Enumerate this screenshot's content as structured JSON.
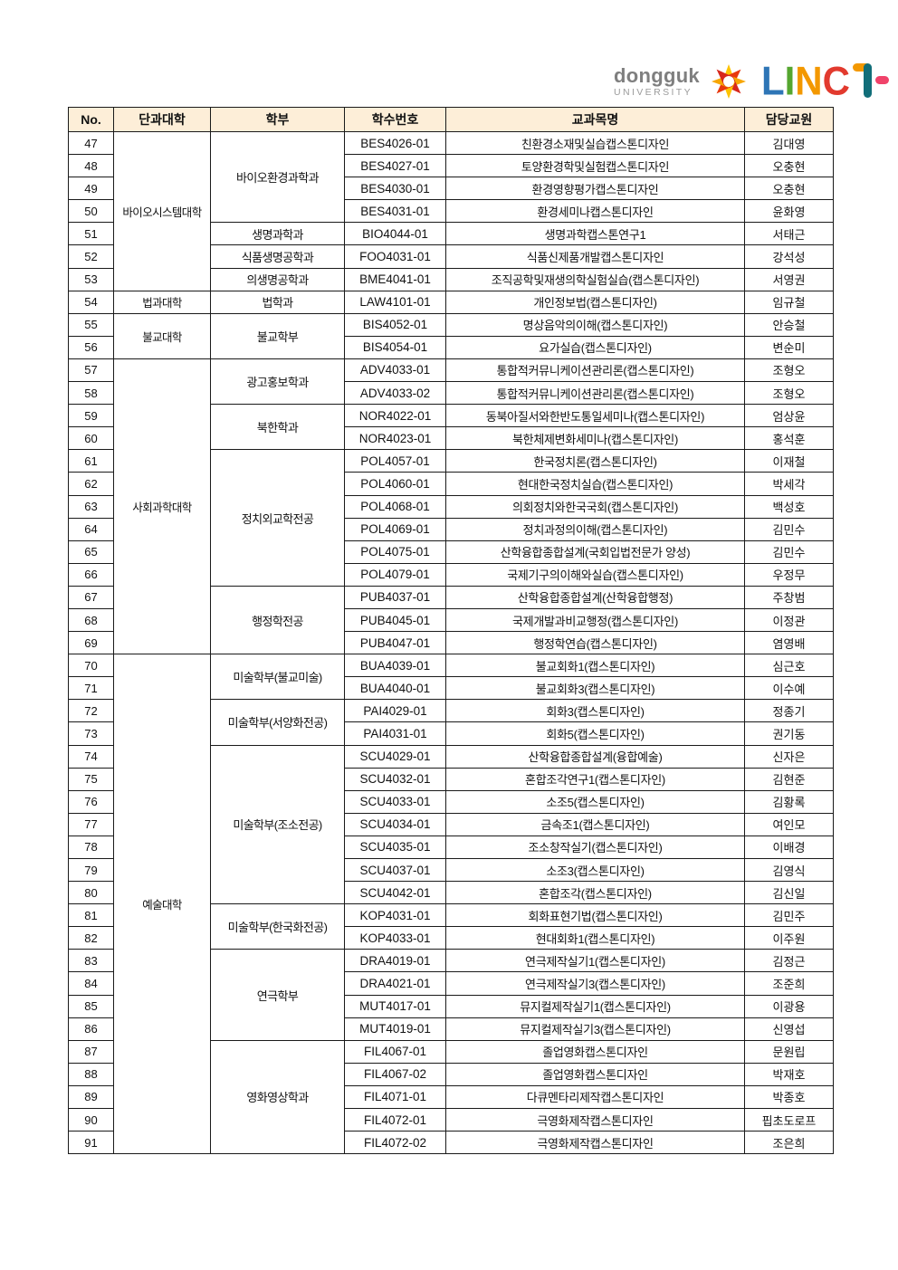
{
  "logo": {
    "dongguk": "dongguk",
    "university": "UNIVERSITY",
    "linc_letters": [
      {
        "ch": "L",
        "color": "#2e75b6"
      },
      {
        "ch": "I",
        "color": "#55a630"
      },
      {
        "ch": "N",
        "color": "#f39800"
      },
      {
        "ch": "C",
        "color": "#e23a2e"
      }
    ],
    "plus_colors": {
      "hook": "#f39800",
      "vertical": "#116e79",
      "dash": "#f0436a"
    },
    "pinwheel_colors": [
      "#fdc300",
      "#e8380d",
      "#f7a600",
      "#d7281d",
      "#fdc300",
      "#e8380d",
      "#f7a600",
      "#d7281d"
    ]
  },
  "table": {
    "header_bg": "#fdeed8",
    "headers": [
      "No.",
      "단과대학",
      "학부",
      "학수번호",
      "교과목명",
      "담당교원"
    ],
    "rows": [
      {
        "no": "47",
        "college": {
          "label": "바이오시스템대학",
          "span": 7
        },
        "dept": {
          "label": "바이오환경과학과",
          "span": 4
        },
        "code": "BES4026-01",
        "course": "친환경소재및실습캡스톤디자인",
        "prof": "김대영"
      },
      {
        "no": "48",
        "code": "BES4027-01",
        "course": "토양환경학및실험캡스톤디자인",
        "prof": "오충현"
      },
      {
        "no": "49",
        "code": "BES4030-01",
        "course": "환경영향평가캡스톤디자인",
        "prof": "오충현"
      },
      {
        "no": "50",
        "code": "BES4031-01",
        "course": "환경세미나캡스톤디자인",
        "prof": "윤화영"
      },
      {
        "no": "51",
        "dept": {
          "label": "생명과학과",
          "span": 1
        },
        "code": "BIO4044-01",
        "course": "생명과학캡스톤연구1",
        "prof": "서태근"
      },
      {
        "no": "52",
        "dept": {
          "label": "식품생명공학과",
          "span": 1
        },
        "code": "FOO4031-01",
        "course": "식품신제품개발캡스톤디자인",
        "prof": "강석성"
      },
      {
        "no": "53",
        "dept": {
          "label": "의생명공학과",
          "span": 1
        },
        "code": "BME4041-01",
        "course": "조직공학및재생의학실험실습(캡스톤디자인)",
        "prof": "서영권"
      },
      {
        "no": "54",
        "college": {
          "label": "법과대학",
          "span": 1
        },
        "dept": {
          "label": "법학과",
          "span": 1
        },
        "code": "LAW4101-01",
        "course": "개인정보법(캡스톤디자인)",
        "prof": "임규철"
      },
      {
        "no": "55",
        "college": {
          "label": "불교대학",
          "span": 2
        },
        "dept": {
          "label": "불교학부",
          "span": 2
        },
        "code": "BIS4052-01",
        "course": "명상음악의이해(캡스톤디자인)",
        "prof": "안승철"
      },
      {
        "no": "56",
        "code": "BIS4054-01",
        "course": "요가실습(캡스톤디자인)",
        "prof": "변순미"
      },
      {
        "no": "57",
        "college": {
          "label": "사회과학대학",
          "span": 13
        },
        "dept": {
          "label": "광고홍보학과",
          "span": 2
        },
        "code": "ADV4033-01",
        "course": "통합적커뮤니케이션관리론(캡스톤디자인)",
        "prof": "조형오"
      },
      {
        "no": "58",
        "code": "ADV4033-02",
        "course": "통합적커뮤니케이션관리론(캡스톤디자인)",
        "prof": "조형오"
      },
      {
        "no": "59",
        "dept": {
          "label": "북한학과",
          "span": 2
        },
        "code": "NOR4022-01",
        "course": "동북아질서와한반도통일세미나(캡스톤디자인)",
        "prof": "엄상윤"
      },
      {
        "no": "60",
        "code": "NOR4023-01",
        "course": "북한체제변화세미나(캡스톤디자인)",
        "prof": "홍석훈"
      },
      {
        "no": "61",
        "dept": {
          "label": "정치외교학전공",
          "span": 6
        },
        "code": "POL4057-01",
        "course": "한국정치론(캡스톤디자인)",
        "prof": "이재철"
      },
      {
        "no": "62",
        "code": "POL4060-01",
        "course": "현대한국정치실습(캡스톤디자인)",
        "prof": "박세각"
      },
      {
        "no": "63",
        "code": "POL4068-01",
        "course": "의회정치와한국국회(캡스톤디자인)",
        "prof": "백성호"
      },
      {
        "no": "64",
        "code": "POL4069-01",
        "course": "정치과정의이해(캡스톤디자인)",
        "prof": "김민수"
      },
      {
        "no": "65",
        "code": "POL4075-01",
        "course": "산학융합종합설계(국회입법전문가 양성)",
        "prof": "김민수"
      },
      {
        "no": "66",
        "code": "POL4079-01",
        "course": "국제기구의이해와실습(캡스톤디자인)",
        "prof": "우정무"
      },
      {
        "no": "67",
        "dept": {
          "label": "행정학전공",
          "span": 3
        },
        "code": "PUB4037-01",
        "course": "산학융합종합설계(산학융합행정)",
        "prof": "주창범"
      },
      {
        "no": "68",
        "code": "PUB4045-01",
        "course": "국제개발과비교행정(캡스톤디자인)",
        "prof": "이정관"
      },
      {
        "no": "69",
        "code": "PUB4047-01",
        "course": "행정학연습(캡스톤디자인)",
        "prof": "염영배"
      },
      {
        "no": "70",
        "college": {
          "label": "예술대학",
          "span": 22
        },
        "dept": {
          "label": "미술학부(불교미술)",
          "span": 2
        },
        "code": "BUA4039-01",
        "course": "불교회화1(캡스톤디자인)",
        "prof": "심근호"
      },
      {
        "no": "71",
        "code": "BUA4040-01",
        "course": "불교회화3(캡스톤디자인)",
        "prof": "이수예"
      },
      {
        "no": "72",
        "dept": {
          "label": "미술학부(서양화전공)",
          "span": 2
        },
        "code": "PAI4029-01",
        "course": "회화3(캡스톤디자인)",
        "prof": "정종기"
      },
      {
        "no": "73",
        "code": "PAI4031-01",
        "course": "회화5(캡스톤디자인)",
        "prof": "권기동"
      },
      {
        "no": "74",
        "dept": {
          "label": "미술학부(조소전공)",
          "span": 7
        },
        "code": "SCU4029-01",
        "course": "산학융합종합설계(융합예술)",
        "prof": "신자은"
      },
      {
        "no": "75",
        "code": "SCU4032-01",
        "course": "혼합조각연구1(캡스톤디자인)",
        "prof": "김현준"
      },
      {
        "no": "76",
        "code": "SCU4033-01",
        "course": "소조5(캡스톤디자인)",
        "prof": "김황록"
      },
      {
        "no": "77",
        "code": "SCU4034-01",
        "course": "금속조1(캡스톤디자인)",
        "prof": "여인모"
      },
      {
        "no": "78",
        "code": "SCU4035-01",
        "course": "조소창작실기(캡스톤디자인)",
        "prof": "이배경"
      },
      {
        "no": "79",
        "code": "SCU4037-01",
        "course": "소조3(캡스톤디자인)",
        "prof": "김영식"
      },
      {
        "no": "80",
        "code": "SCU4042-01",
        "course": "혼합조각(캡스톤디자인)",
        "prof": "김신일"
      },
      {
        "no": "81",
        "dept": {
          "label": "미술학부(한국화전공)",
          "span": 2
        },
        "code": "KOP4031-01",
        "course": "회화표현기법(캡스톤디자인)",
        "prof": "김민주"
      },
      {
        "no": "82",
        "code": "KOP4033-01",
        "course": "현대회화1(캡스톤디자인)",
        "prof": "이주원"
      },
      {
        "no": "83",
        "dept": {
          "label": "연극학부",
          "span": 4
        },
        "code": "DRA4019-01",
        "course": "연극제작실기1(캡스톤디자인)",
        "prof": "김정근"
      },
      {
        "no": "84",
        "code": "DRA4021-01",
        "course": "연극제작실기3(캡스톤디자인)",
        "prof": "조준희"
      },
      {
        "no": "85",
        "code": "MUT4017-01",
        "course": "뮤지컬제작실기1(캡스톤디자인)",
        "prof": "이광용"
      },
      {
        "no": "86",
        "code": "MUT4019-01",
        "course": "뮤지컬제작실기3(캡스톤디자인)",
        "prof": "신영섭"
      },
      {
        "no": "87",
        "dept": {
          "label": "영화영상학과",
          "span": 5
        },
        "code": "FIL4067-01",
        "course": "졸업영화캡스톤디자인",
        "prof": "문원립"
      },
      {
        "no": "88",
        "code": "FIL4067-02",
        "course": "졸업영화캡스톤디자인",
        "prof": "박재호"
      },
      {
        "no": "89",
        "code": "FIL4071-01",
        "course": "다큐멘타리제작캡스톤디자인",
        "prof": "박종호"
      },
      {
        "no": "90",
        "code": "FIL4072-01",
        "course": "극영화제작캡스톤디자인",
        "prof": "핍초도로프"
      },
      {
        "no": "91",
        "code": "FIL4072-02",
        "course": "극영화제작캡스톤디자인",
        "prof": "조은희"
      }
    ]
  }
}
